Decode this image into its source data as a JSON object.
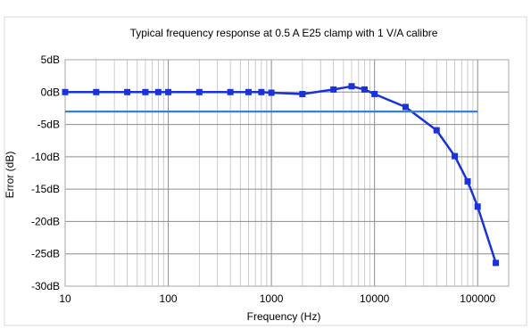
{
  "chart_data": {
    "type": "line",
    "title": "Typical frequency response at 0.5 A E25 clamp with 1 V/A calibre",
    "xlabel": "Frequency (Hz)",
    "ylabel": "Error (dB)",
    "x_scale": "log",
    "xlim": [
      10,
      200000
    ],
    "ylim": [
      -30,
      5
    ],
    "x_ticks": [
      10,
      100,
      1000,
      10000,
      100000
    ],
    "x_tick_labels": [
      "10",
      "100",
      "1000",
      "10000",
      "100000"
    ],
    "y_ticks": [
      5,
      0,
      -5,
      -10,
      -15,
      -20,
      -25,
      -30
    ],
    "y_tick_labels": [
      "5dB",
      "0dB",
      "-5dB",
      "-10dB",
      "-15dB",
      "-20dB",
      "-25dB",
      "-30dB"
    ],
    "grid": true,
    "series": [
      {
        "color": "#1a33d9",
        "marker": "square",
        "x": [
          10,
          20,
          40,
          60,
          80,
          100,
          200,
          400,
          600,
          800,
          1000,
          2000,
          4000,
          6000,
          8000,
          10000,
          20000,
          40000,
          60000,
          80000,
          100000,
          150000
        ],
        "y": [
          0,
          0,
          0,
          0,
          0,
          0,
          0,
          0,
          0,
          0,
          -0.1,
          -0.3,
          0.4,
          0.9,
          0.4,
          -0.3,
          -2.3,
          -5.9,
          -9.9,
          -13.8,
          -17.7,
          -26.4
        ]
      },
      {
        "color": "#3a7fd0",
        "marker": "none",
        "x": [
          10,
          100000
        ],
        "y": [
          -3,
          -3
        ]
      }
    ]
  }
}
